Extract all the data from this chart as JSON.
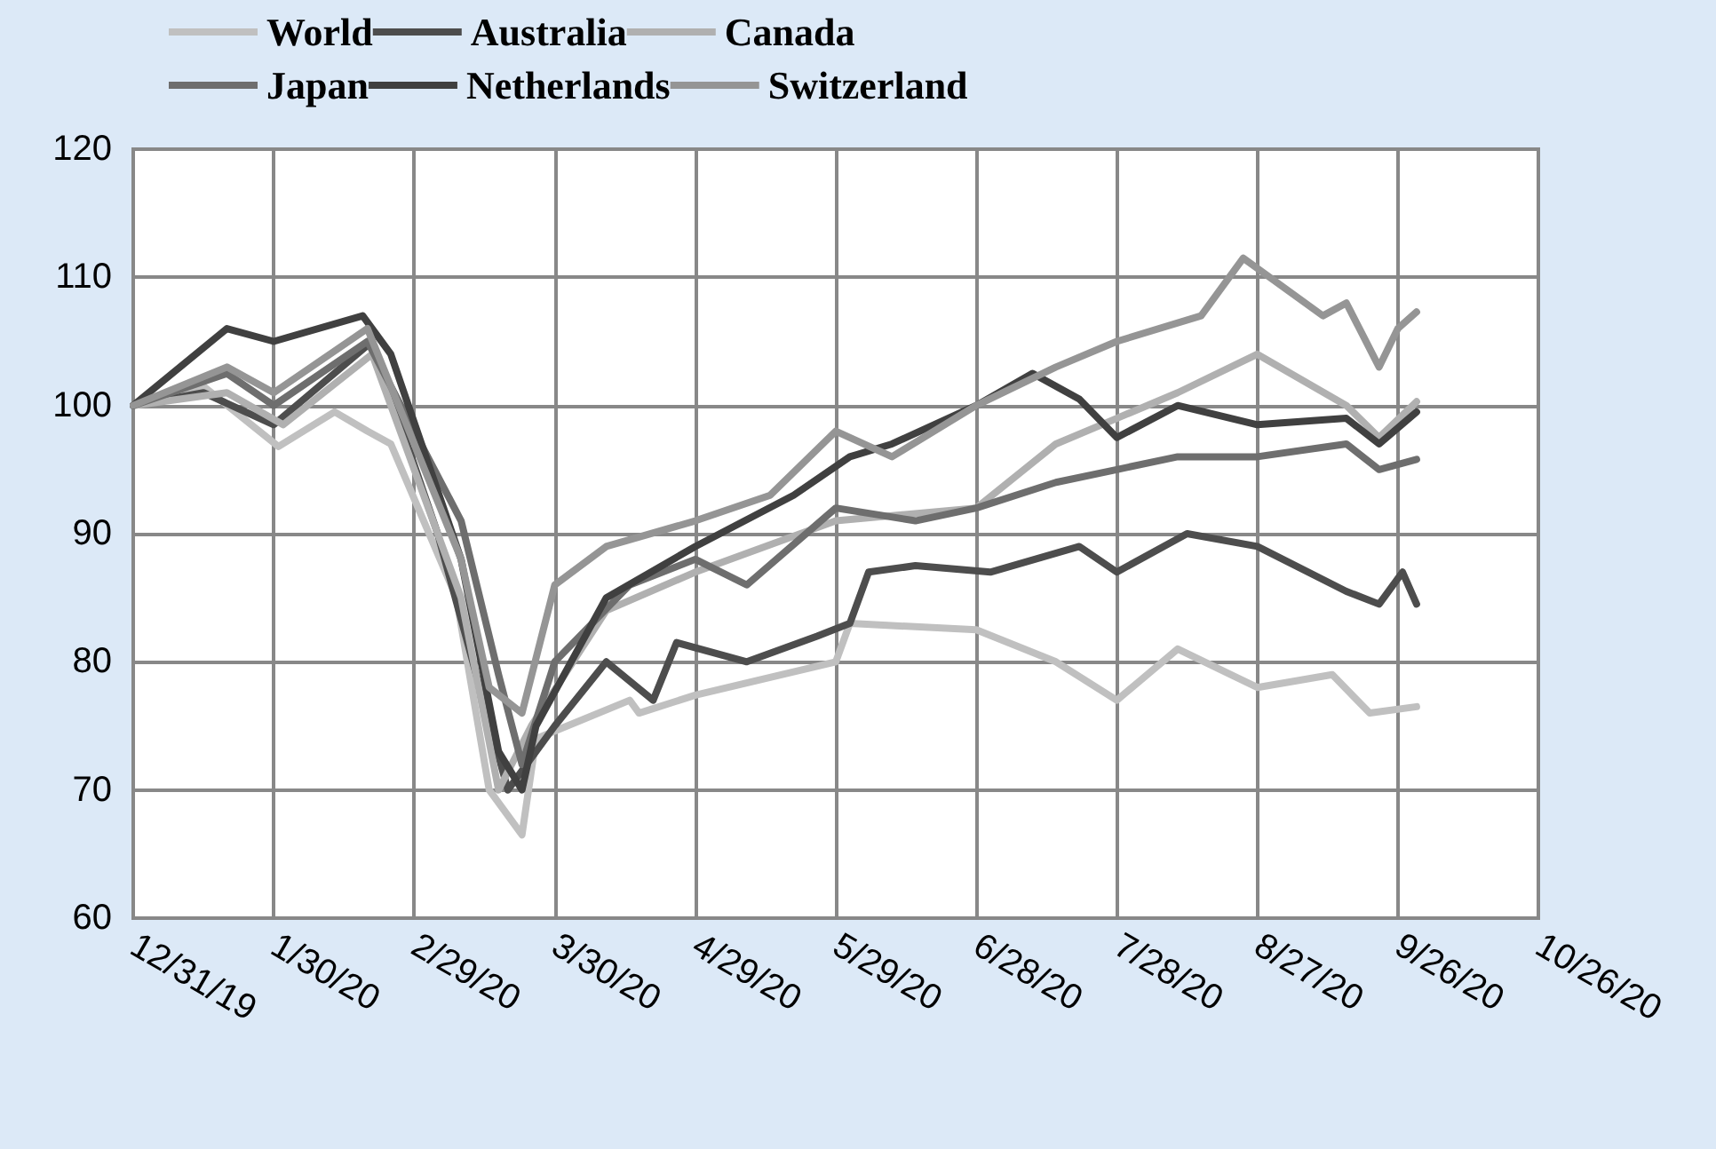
{
  "chart_data": {
    "type": "line",
    "xlim": [
      "2019-12-31",
      "2020-10-26"
    ],
    "xticks": [
      {
        "value": "2019-12-31",
        "label": "12/31/19"
      },
      {
        "value": "2020-01-30",
        "label": "1/30/20"
      },
      {
        "value": "2020-02-29",
        "label": "2/29/20"
      },
      {
        "value": "2020-03-30",
        "label": "3/30/20"
      },
      {
        "value": "2020-04-29",
        "label": "4/29/20"
      },
      {
        "value": "2020-05-29",
        "label": "5/29/20"
      },
      {
        "value": "2020-06-28",
        "label": "6/28/20"
      },
      {
        "value": "2020-07-28",
        "label": "7/28/20"
      },
      {
        "value": "2020-08-27",
        "label": "8/27/20"
      },
      {
        "value": "2020-09-26",
        "label": "9/26/20"
      },
      {
        "value": "2020-10-26",
        "label": "10/26/20"
      }
    ],
    "ylim": [
      60,
      120
    ],
    "yticks": [
      60,
      70,
      80,
      90,
      100,
      110,
      120
    ],
    "grid": true,
    "legend": "top",
    "marker": "none",
    "line_style": "solid",
    "series": [
      {
        "name": "World",
        "color": "#c0c0c0",
        "x": [
          "2019-12-31",
          "2020-01-15",
          "2020-01-31",
          "2020-02-12",
          "2020-02-19",
          "2020-02-24",
          "2020-03-09",
          "2020-03-16",
          "2020-03-23",
          "2020-03-26",
          "2020-04-15",
          "2020-04-17",
          "2020-04-29",
          "2020-05-29",
          "2020-06-01",
          "2020-06-28",
          "2020-07-15",
          "2020-07-28",
          "2020-08-10",
          "2020-08-27",
          "2020-09-12",
          "2020-09-20",
          "2020-09-30"
        ],
        "values": [
          100,
          101.5,
          96.8,
          99.5,
          98,
          97,
          85,
          70,
          66.5,
          74,
          77,
          76,
          77.4,
          80,
          83,
          82.5,
          80,
          77,
          81,
          78,
          79,
          76,
          76.5
        ]
      },
      {
        "name": "Australia",
        "color": "#4d4d4d",
        "x": [
          "2019-12-31",
          "2020-01-15",
          "2020-01-30",
          "2020-02-20",
          "2020-03-05",
          "2020-03-20",
          "2020-03-30",
          "2020-04-10",
          "2020-04-20",
          "2020-04-25",
          "2020-05-10",
          "2020-05-25",
          "2020-06-01",
          "2020-06-05",
          "2020-06-15",
          "2020-07-01",
          "2020-07-20",
          "2020-07-28",
          "2020-08-12",
          "2020-08-27",
          "2020-09-15",
          "2020-09-22",
          "2020-09-27",
          "2020-09-30"
        ],
        "values": [
          100,
          101,
          98.5,
          105,
          90,
          70,
          75,
          80,
          77,
          81.5,
          80,
          82,
          83,
          87,
          87.5,
          87,
          89,
          87,
          90,
          89,
          85.5,
          84.5,
          87,
          84.5
        ]
      },
      {
        "name": "Canada",
        "color": "#b0b0b0",
        "x": [
          "2019-12-31",
          "2020-01-20",
          "2020-02-01",
          "2020-02-20",
          "2020-03-10",
          "2020-03-18",
          "2020-03-25",
          "2020-04-10",
          "2020-04-29",
          "2020-05-29",
          "2020-06-28",
          "2020-07-15",
          "2020-07-28",
          "2020-08-10",
          "2020-08-27",
          "2020-09-15",
          "2020-09-22",
          "2020-09-30"
        ],
        "values": [
          100,
          101,
          98.5,
          104,
          85,
          70,
          75,
          84,
          87,
          91,
          92,
          97,
          99,
          101,
          104,
          100,
          97.5,
          100.3
        ]
      },
      {
        "name": "Japan",
        "color": "#6e6e6e",
        "x": [
          "2019-12-31",
          "2020-01-20",
          "2020-01-30",
          "2020-02-19",
          "2020-03-10",
          "2020-03-18",
          "2020-03-23",
          "2020-03-30",
          "2020-04-15",
          "2020-04-29",
          "2020-05-10",
          "2020-05-29",
          "2020-06-15",
          "2020-06-28",
          "2020-07-15",
          "2020-07-28",
          "2020-08-10",
          "2020-08-27",
          "2020-09-15",
          "2020-09-22",
          "2020-09-30"
        ],
        "values": [
          100,
          102.5,
          100,
          105,
          91,
          79,
          72,
          80,
          86,
          88,
          86,
          92,
          91,
          92,
          94,
          95,
          96,
          96,
          97,
          95,
          95.8
        ]
      },
      {
        "name": "Netherlands",
        "color": "#404040",
        "x": [
          "2019-12-31",
          "2020-01-20",
          "2020-01-30",
          "2020-02-18",
          "2020-02-24",
          "2020-03-10",
          "2020-03-18",
          "2020-03-23",
          "2020-03-26",
          "2020-04-10",
          "2020-04-29",
          "2020-05-20",
          "2020-06-01",
          "2020-06-10",
          "2020-06-28",
          "2020-07-10",
          "2020-07-20",
          "2020-07-28",
          "2020-08-10",
          "2020-08-27",
          "2020-09-15",
          "2020-09-22",
          "2020-09-30"
        ],
        "values": [
          100,
          106,
          105,
          107,
          104,
          88,
          73,
          70,
          75,
          85,
          89,
          93,
          96,
          97,
          100,
          102.5,
          100.5,
          97.5,
          100,
          98.5,
          99,
          97,
          99.5
        ]
      },
      {
        "name": "Switzerland",
        "color": "#959595",
        "x": [
          "2019-12-31",
          "2020-01-20",
          "2020-01-30",
          "2020-02-19",
          "2020-03-10",
          "2020-03-16",
          "2020-03-23",
          "2020-03-30",
          "2020-04-10",
          "2020-04-29",
          "2020-05-15",
          "2020-05-29",
          "2020-06-10",
          "2020-06-28",
          "2020-07-15",
          "2020-07-28",
          "2020-08-15",
          "2020-08-24",
          "2020-09-10",
          "2020-09-15",
          "2020-09-22",
          "2020-09-26",
          "2020-09-30"
        ],
        "values": [
          100,
          103,
          101,
          106,
          88,
          78,
          76,
          86,
          89,
          91,
          93,
          98,
          96,
          100,
          103,
          105,
          107,
          111.5,
          107,
          108,
          103,
          106,
          107.3
        ]
      }
    ]
  }
}
